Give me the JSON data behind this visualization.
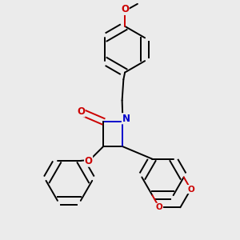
{
  "background_color": "#ebebeb",
  "bond_color": "#000000",
  "nitrogen_color": "#0000cc",
  "oxygen_color": "#cc0000",
  "line_width": 1.4,
  "figsize": [
    3.0,
    3.0
  ],
  "dpi": 100,
  "xlim": [
    -1.6,
    1.8
  ],
  "ylim": [
    -1.7,
    1.7
  ]
}
